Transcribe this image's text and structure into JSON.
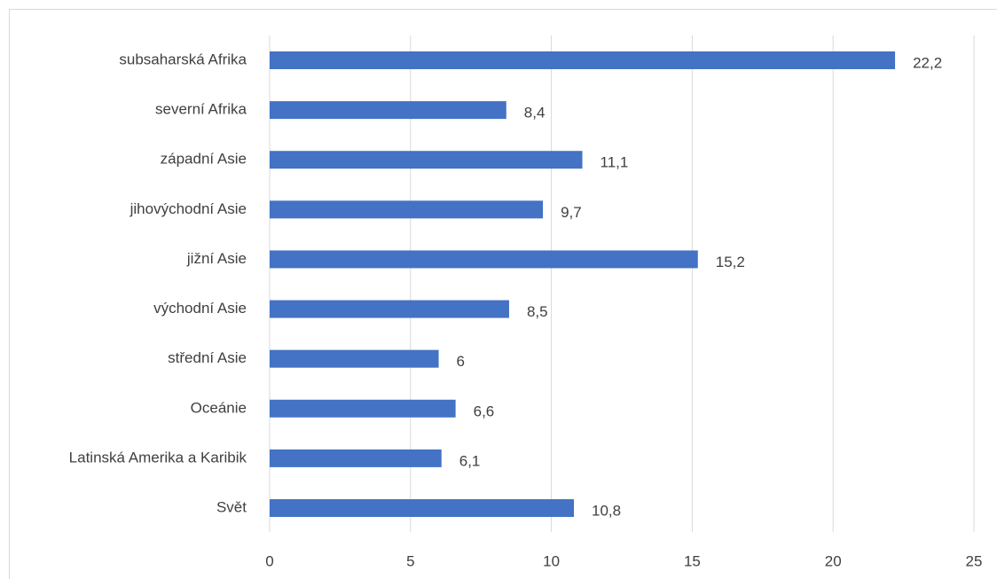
{
  "chart_data": {
    "type": "hbar",
    "categories": [
      "subsaharská Afrika",
      "severní Afrika",
      "západní Asie",
      "jihovýchodní Asie",
      "jižní Asie",
      "východní Asie",
      "střední Asie",
      "Oceánie",
      "Latinská Amerika a Karibik",
      "Svět"
    ],
    "values": [
      22.2,
      8.4,
      11.1,
      9.7,
      15.2,
      8.5,
      6,
      6.6,
      6.1,
      10.8
    ],
    "value_labels": [
      "22,2",
      "8,4",
      "11,1",
      "9,7",
      "15,2",
      "8,5",
      "6",
      "6,6",
      "6,1",
      "10,8"
    ],
    "color": "#4472c4",
    "xlim": [
      0,
      25
    ],
    "xticks": [
      0,
      5,
      10,
      15,
      20,
      25
    ],
    "grid": true
  }
}
